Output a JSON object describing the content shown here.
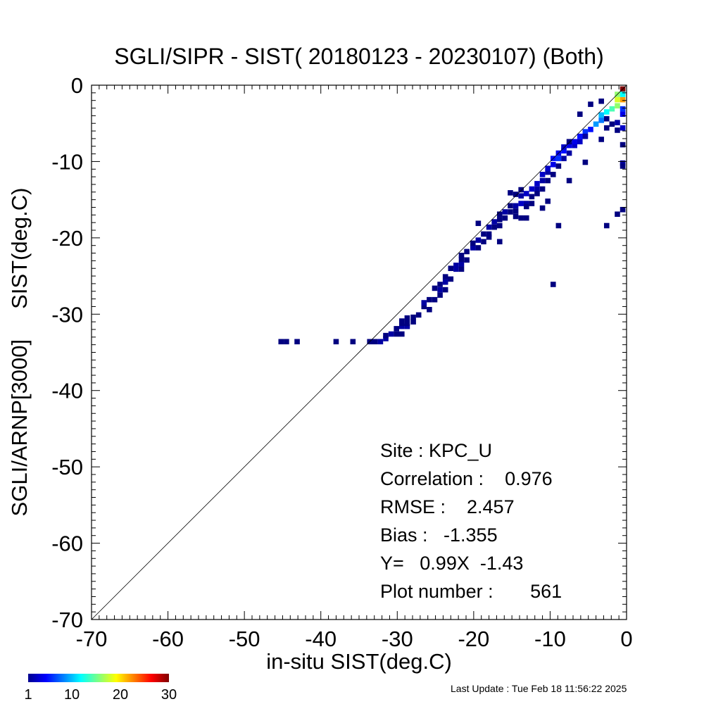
{
  "chart_data": {
    "type": "heatmap",
    "title": "SGLI/SIPR - SIST( 20180123 - 20230107) (Both)",
    "xlabel": "in-situ SIST(deg.C)",
    "ylabel": "SGLI/ARNP[3000]     SIST(deg.C)",
    "xlim": [
      -70,
      0
    ],
    "ylim": [
      -70,
      0
    ],
    "x_ticks": [
      -70,
      -60,
      -50,
      -40,
      -30,
      -20,
      -10,
      0
    ],
    "y_ticks": [
      0,
      -10,
      -20,
      -30,
      -40,
      -50,
      -60,
      -70
    ],
    "one_to_one_line": true,
    "grid": false,
    "bin_size": 0.7,
    "colorbar": {
      "min": 1,
      "max": 30,
      "tick_labels": [
        "1",
        "10",
        "20",
        "30"
      ],
      "tick_values": [
        1,
        10,
        20,
        30
      ],
      "colormap": "jet"
    },
    "stats": {
      "site": "Site : KPC_U",
      "correlation": "Correlation :    0.976",
      "rmse": "RMSE :    2.457",
      "bias": "Bias :   -1.355",
      "fit": "Y=   0.99X  -1.43",
      "plot_number": "Plot number :       561"
    },
    "cells": [
      [
        -45.2,
        -33.6,
        1
      ],
      [
        -44.5,
        -33.6,
        1
      ],
      [
        -43.1,
        -33.6,
        1
      ],
      [
        -38,
        -33.6,
        1
      ],
      [
        -35.8,
        -33.6,
        1
      ],
      [
        -33.6,
        -33.6,
        1
      ],
      [
        -32.9,
        -33.6,
        1
      ],
      [
        -32.2,
        -33.6,
        2
      ],
      [
        -31.5,
        -33.2,
        2
      ],
      [
        -31.5,
        -32.8,
        1
      ],
      [
        -30.8,
        -32.6,
        2
      ],
      [
        -30.1,
        -32.6,
        1
      ],
      [
        -29.4,
        -32.6,
        1
      ],
      [
        -30.1,
        -31.9,
        1
      ],
      [
        -29.4,
        -31.6,
        2
      ],
      [
        -28.7,
        -31.6,
        2
      ],
      [
        -28.7,
        -31.2,
        1
      ],
      [
        -29.4,
        -31.2,
        1
      ],
      [
        -27.9,
        -31,
        1
      ],
      [
        -28.7,
        -30.5,
        1
      ],
      [
        -27.2,
        -30.1,
        1
      ],
      [
        -26.5,
        -29,
        1
      ],
      [
        -25.8,
        -29.4,
        1
      ],
      [
        -26.5,
        -28.5,
        2
      ],
      [
        -25.8,
        -28.1,
        1
      ],
      [
        -25.1,
        -28.1,
        1
      ],
      [
        -24.4,
        -27.5,
        1
      ],
      [
        -24.4,
        -26.8,
        2
      ],
      [
        -23.7,
        -26.8,
        1
      ],
      [
        -24.4,
        -26.1,
        1
      ],
      [
        -23.7,
        -25.8,
        2
      ],
      [
        -23.7,
        -25.1,
        1
      ],
      [
        -23,
        -25.4,
        1
      ],
      [
        -22.3,
        -24.1,
        2
      ],
      [
        -21.6,
        -24.1,
        1
      ],
      [
        -22.3,
        -23.6,
        2
      ],
      [
        -21.6,
        -23.4,
        2
      ],
      [
        -21.6,
        -22.8,
        1
      ],
      [
        -20.9,
        -22.9,
        1
      ],
      [
        -21.6,
        -22.3,
        1
      ],
      [
        -20.1,
        -21.3,
        2
      ],
      [
        -19.4,
        -21.3,
        1
      ],
      [
        -20.1,
        -20.7,
        1
      ],
      [
        -19.4,
        -20.3,
        2
      ],
      [
        -18.7,
        -20.5,
        1
      ],
      [
        -18.7,
        -19.5,
        1
      ],
      [
        -18,
        -19.5,
        1
      ],
      [
        -18,
        -18.6,
        2
      ],
      [
        -17.3,
        -18.6,
        1
      ],
      [
        -16.6,
        -18.4,
        1
      ],
      [
        -17.3,
        -17.9,
        2
      ],
      [
        -16.6,
        -17.6,
        1
      ],
      [
        -15.9,
        -17.4,
        1
      ],
      [
        -15.9,
        -16.6,
        2
      ],
      [
        -15.2,
        -16.6,
        1
      ],
      [
        -14.5,
        -17.2,
        1
      ],
      [
        -13.8,
        -17.4,
        1
      ],
      [
        -13.1,
        -17.4,
        1
      ],
      [
        -15.2,
        -15.8,
        1
      ],
      [
        -14.5,
        -15.8,
        2
      ],
      [
        -13.8,
        -15.5,
        3
      ],
      [
        -13.1,
        -15.5,
        2
      ],
      [
        -12.4,
        -15.5,
        1
      ],
      [
        -13.8,
        -14.5,
        2
      ],
      [
        -13.1,
        -14.2,
        3
      ],
      [
        -12.4,
        -14.6,
        1
      ],
      [
        -14.5,
        -14.3,
        1
      ],
      [
        -12.4,
        -13.6,
        3
      ],
      [
        -11.7,
        -13.6,
        2
      ],
      [
        -11,
        -13.6,
        1
      ],
      [
        -11.7,
        -12.9,
        3
      ],
      [
        -11,
        -12.5,
        2
      ],
      [
        -10.3,
        -12.5,
        1
      ],
      [
        -11,
        -11.7,
        3
      ],
      [
        -10.3,
        -11.4,
        2
      ],
      [
        -9.6,
        -11.7,
        1
      ],
      [
        -10.3,
        -10.9,
        3
      ],
      [
        -9.6,
        -10.4,
        4
      ],
      [
        -8.9,
        -10.6,
        1
      ],
      [
        -9.6,
        -9.6,
        5
      ],
      [
        -8.9,
        -9.6,
        6
      ],
      [
        -8.2,
        -9.6,
        2
      ],
      [
        -8.9,
        -8.9,
        4
      ],
      [
        -8.2,
        -8.6,
        5
      ],
      [
        -7.5,
        -8.9,
        2
      ],
      [
        -8.2,
        -8.1,
        3
      ],
      [
        -7.5,
        -7.9,
        4
      ],
      [
        -6.8,
        -7.9,
        3
      ],
      [
        -6.8,
        -7.4,
        4
      ],
      [
        -6.1,
        -7.4,
        3
      ],
      [
        -7.5,
        -7.4,
        1
      ],
      [
        -6.1,
        -6.7,
        5
      ],
      [
        -5.4,
        -6.7,
        4
      ],
      [
        -5.4,
        -6.1,
        6
      ],
      [
        -4.7,
        -5.8,
        5
      ],
      [
        -4,
        -5.1,
        9
      ],
      [
        -3.3,
        -4.6,
        8
      ],
      [
        -3.3,
        -3.9,
        10
      ],
      [
        -2.6,
        -3.5,
        12
      ],
      [
        -1.9,
        -3.1,
        14
      ],
      [
        -1.2,
        -2.7,
        16
      ],
      [
        -1.2,
        -1.9,
        18
      ],
      [
        -0.5,
        -1.9,
        22
      ],
      [
        -1.2,
        -1.2,
        16
      ],
      [
        -0.5,
        -0.5,
        30
      ],
      [
        -0.5,
        -1.2,
        12
      ],
      [
        -0.5,
        -3.1,
        6
      ],
      [
        -0.5,
        -3.8,
        4
      ],
      [
        -1.2,
        -4.9,
        2
      ],
      [
        -1.9,
        -5.1,
        1
      ],
      [
        -0.5,
        -5.6,
        3
      ],
      [
        -0.5,
        -10.2,
        2
      ],
      [
        -0.5,
        -10.6,
        1
      ],
      [
        -1.2,
        -16.9,
        1
      ],
      [
        -0.5,
        -16.3,
        1
      ],
      [
        -2.6,
        -18.4,
        1
      ],
      [
        -8.9,
        -18.4,
        1
      ],
      [
        -9.6,
        -26.1,
        1
      ],
      [
        -16.6,
        -20.5,
        1
      ],
      [
        -19.4,
        -18.1,
        1
      ],
      [
        -15.2,
        -14.1,
        1
      ],
      [
        -13.1,
        -15.9,
        1
      ],
      [
        -5.4,
        -10.1,
        1
      ],
      [
        -7.5,
        -12.5,
        1
      ],
      [
        -6.1,
        -3.8,
        1
      ],
      [
        -4.7,
        -2.5,
        1
      ],
      [
        -3.3,
        -2.1,
        1
      ],
      [
        -2.6,
        -4.4,
        1
      ],
      [
        -2.6,
        -5.6,
        1
      ],
      [
        -1.2,
        -5.9,
        1
      ],
      [
        -3.3,
        -7.1,
        1
      ],
      [
        -0.5,
        -7.8,
        1
      ],
      [
        -5.4,
        -6.7,
        2
      ],
      [
        -10.3,
        -15.2,
        1
      ],
      [
        -11,
        -16.1,
        1
      ],
      [
        -11.7,
        -14.2,
        1
      ],
      [
        -13.8,
        -13.7,
        1
      ],
      [
        -14.5,
        -16.5,
        1
      ],
      [
        -16.6,
        -16.9,
        1
      ],
      [
        -18,
        -19.9,
        1
      ],
      [
        -20.9,
        -21.8,
        1
      ],
      [
        -23,
        -24,
        1
      ],
      [
        -25.1,
        -26.6,
        1
      ],
      [
        -27.9,
        -30.4,
        1
      ],
      [
        -29.4,
        -30.9,
        1
      ]
    ]
  },
  "footer": {
    "last_update": "Last Update : Tue Feb 18 11:56:22 2025"
  }
}
